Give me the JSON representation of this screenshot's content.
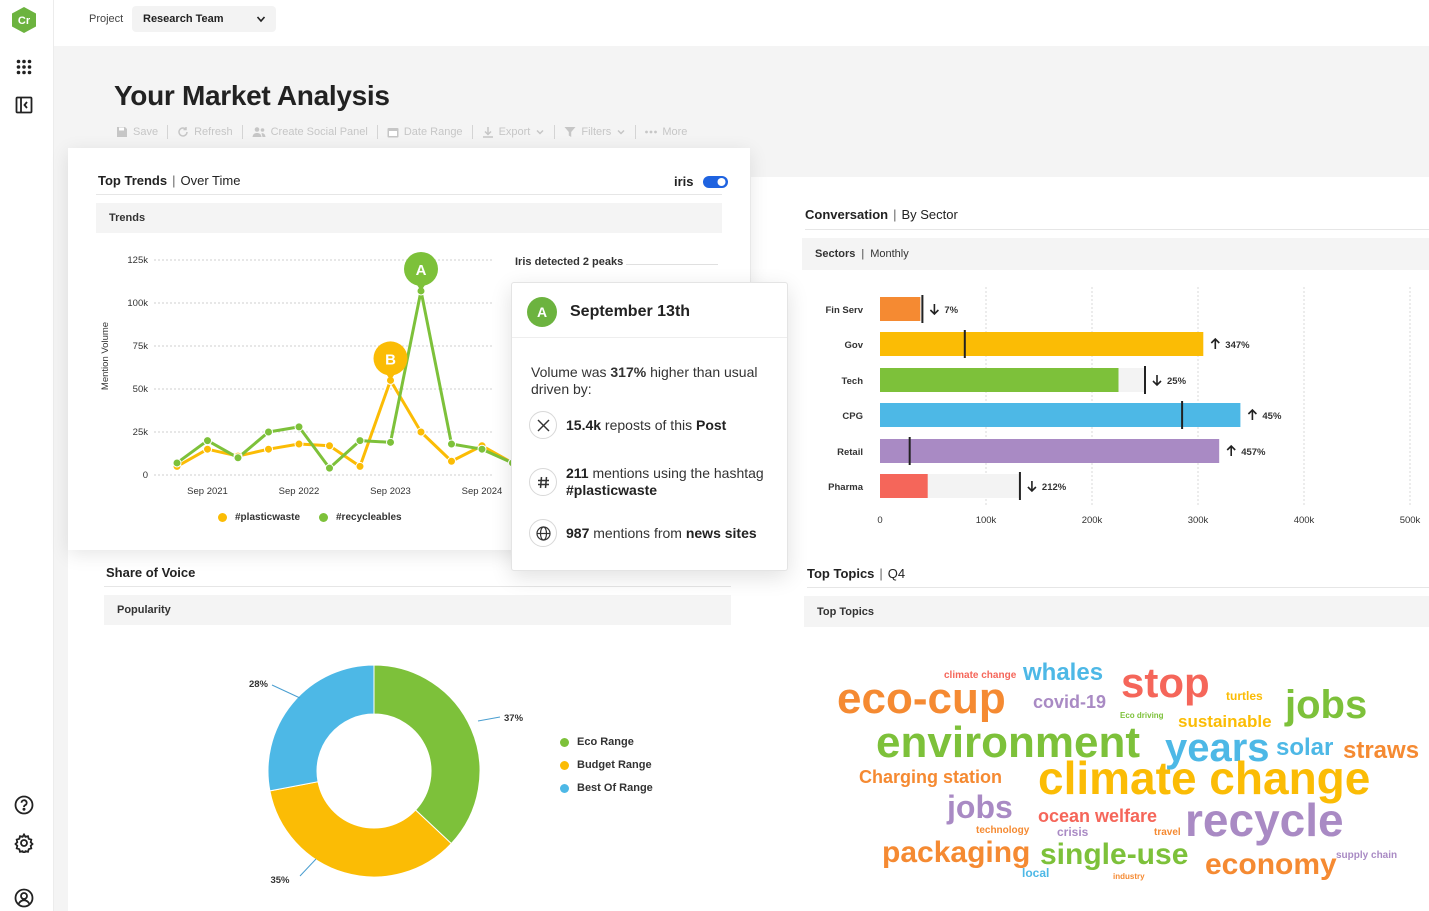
{
  "app": {
    "logo_text": "Cr",
    "brand_color": "#6cb33f"
  },
  "topbar": {
    "project_label": "Project",
    "project_value": "Research Team"
  },
  "page": {
    "title": "Your Market Analysis"
  },
  "toolbar": {
    "save": "Save",
    "refresh": "Refresh",
    "create_panel": "Create Social Panel",
    "date_range": "Date Range",
    "export": "Export",
    "filters": "Filters",
    "more": "More"
  },
  "trends_card": {
    "title": "Top Trends",
    "subtitle": "Over Time",
    "toggle_label": "iris",
    "toggle_on": true,
    "section": "Trends",
    "peaks_note": "Iris detected 2 peaks"
  },
  "chart_data": [
    {
      "type": "line",
      "ylabel": "Mention Volume",
      "ylim": [
        0,
        125000
      ],
      "yticks": [
        "0",
        "25k",
        "50k",
        "75k",
        "100k",
        "125k"
      ],
      "xticks": [
        "Sep 2021",
        "Sep 2022",
        "Sep 2023",
        "Sep 2024"
      ],
      "xtick_index": [
        1,
        4,
        7,
        10
      ],
      "series": [
        {
          "name": "#plasticwaste",
          "color": "#fbbc05",
          "values": [
            5000,
            15000,
            11000,
            15000,
            18000,
            17000,
            5000,
            55000,
            25000,
            8000,
            17000,
            7000
          ]
        },
        {
          "name": "#recycleables",
          "color": "#7dc13a",
          "values": [
            7000,
            20000,
            10000,
            25000,
            28000,
            4000,
            20000,
            19000,
            107000,
            18000,
            15000,
            7000
          ]
        }
      ],
      "peaks": [
        {
          "label": "A",
          "index": 8,
          "value": 107000,
          "color": "#7dc13a"
        },
        {
          "label": "B",
          "index": 7,
          "value": 55000,
          "color": "#fbbc05"
        }
      ]
    },
    {
      "type": "bar",
      "orientation": "horizontal",
      "categories": [
        "Fin Serv",
        "Gov",
        "Tech",
        "CPG",
        "Retail",
        "Pharma"
      ],
      "values": [
        38000,
        305000,
        225000,
        340000,
        320000,
        45000
      ],
      "markers": [
        40000,
        80000,
        250000,
        285000,
        28000,
        132000
      ],
      "changes": [
        {
          "dir": "down",
          "text": "7%"
        },
        {
          "dir": "up",
          "text": "347%"
        },
        {
          "dir": "down",
          "text": "25%"
        },
        {
          "dir": "up",
          "text": "45%"
        },
        {
          "dir": "up",
          "text": "457%"
        },
        {
          "dir": "down",
          "text": "212%"
        }
      ],
      "colors": [
        "#f58a32",
        "#fbbc05",
        "#7dc13a",
        "#4db8e6",
        "#a98ac4",
        "#f5665a"
      ],
      "xticks": [
        "0",
        "100k",
        "200k",
        "300k",
        "400k",
        "500k"
      ],
      "xlim": [
        0,
        500000
      ]
    },
    {
      "type": "pie",
      "donut": true,
      "categories": [
        "Eco Range",
        "Budget Range",
        "Best Of Range"
      ],
      "values": [
        37,
        35,
        28
      ],
      "labels": [
        "37%",
        "35%",
        "28%"
      ],
      "colors": [
        "#7dc13a",
        "#fbbc05",
        "#4db8e6"
      ]
    }
  ],
  "sector_card": {
    "title": "Conversation",
    "subtitle": "By Sector",
    "section_a": "Sectors",
    "section_b": "Monthly"
  },
  "sov_card": {
    "title": "Share of Voice",
    "section": "Popularity"
  },
  "topics_card": {
    "title": "Top Topics",
    "subtitle": "Q4",
    "section": "Top Topics",
    "words": [
      {
        "text": "climate change",
        "color": "#f5665a"
      },
      {
        "text": "whales",
        "color": "#4db8e6"
      },
      {
        "text": "stop",
        "color": "#f5665a"
      },
      {
        "text": "turtles",
        "color": "#fbbc05"
      },
      {
        "text": "eco-cup",
        "color": "#f58a32"
      },
      {
        "text": "covid-19",
        "color": "#a98ac4"
      },
      {
        "text": "Eco driving",
        "color": "#7dc13a"
      },
      {
        "text": "sustainable",
        "color": "#fbbc05"
      },
      {
        "text": "jobs",
        "color": "#7dc13a"
      },
      {
        "text": "environment",
        "color": "#7dc13a"
      },
      {
        "text": "years",
        "color": "#4db8e6"
      },
      {
        "text": "solar",
        "color": "#4db8e6"
      },
      {
        "text": "straws",
        "color": "#f58a32"
      },
      {
        "text": "Charging station",
        "color": "#f58a32"
      },
      {
        "text": "climate change",
        "color": "#fbbc05"
      },
      {
        "text": "jobs",
        "color": "#a98ac4"
      },
      {
        "text": "ocean welfare",
        "color": "#f5665a"
      },
      {
        "text": "technology",
        "color": "#f58a32"
      },
      {
        "text": "crisis",
        "color": "#a98ac4"
      },
      {
        "text": "travel",
        "color": "#f58a32"
      },
      {
        "text": "recycle",
        "color": "#a98ac4"
      },
      {
        "text": "packaging",
        "color": "#f58a32"
      },
      {
        "text": "single-use",
        "color": "#7dc13a"
      },
      {
        "text": "economy",
        "color": "#f58a32"
      },
      {
        "text": "supply chain",
        "color": "#a98ac4"
      },
      {
        "text": "local",
        "color": "#4db8e6"
      },
      {
        "text": "industry",
        "color": "#f58a32"
      }
    ]
  },
  "popup": {
    "badge": "A",
    "date": "September 13th",
    "intro_pre": "Volume was ",
    "intro_value": "317%",
    "intro_post": " higher than usual driven by:",
    "row1_value": "15.4k",
    "row1_text": " reposts of this ",
    "row1_bold": "Post",
    "row2_value": "211",
    "row2_text": " mentions using the hashtag ",
    "row2_bold": "#plasticwaste",
    "row3_value": "987",
    "row3_text": " mentions from ",
    "row3_bold": "news sites"
  }
}
